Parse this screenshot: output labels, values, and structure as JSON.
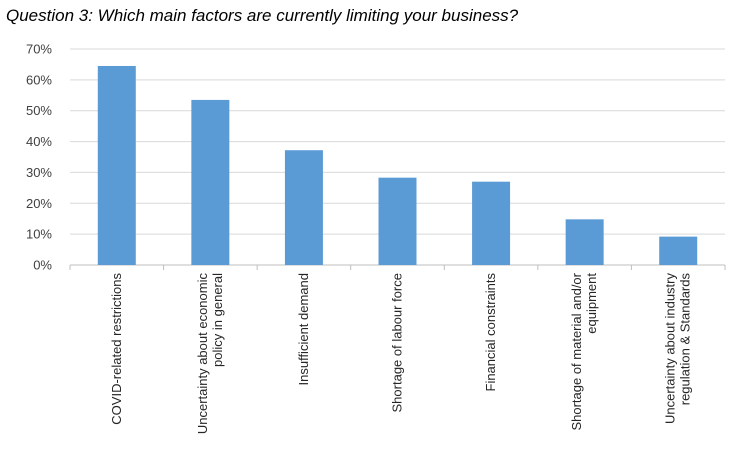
{
  "title": "Question 3: Which main factors are currently limiting your business?",
  "colors": {
    "bar": "#5B9BD5",
    "grid": "#d9d9d9",
    "axis": "#bfbfbf"
  },
  "chart_data": {
    "type": "bar",
    "title": "Question 3: Which main factors are currently limiting your business?",
    "categories": [
      [
        "COVID-related restrictions"
      ],
      [
        "Uncertainty about economic",
        "policy in general"
      ],
      [
        "Insufficient demand"
      ],
      [
        "Shortage of labour force"
      ],
      [
        "Financial constraints"
      ],
      [
        "Shortage of material and/or",
        "equipment"
      ],
      [
        "Uncertainty about industry",
        "regulation & Standards"
      ]
    ],
    "values": [
      64.5,
      53.5,
      37.2,
      28.3,
      27.0,
      14.8,
      9.2
    ],
    "unit": "%",
    "ylim": [
      0,
      70
    ],
    "yticks": [
      "0%",
      "10%",
      "20%",
      "30%",
      "40%",
      "50%",
      "60%",
      "70%"
    ],
    "xlabel": "",
    "ylabel": "",
    "grid": true
  }
}
